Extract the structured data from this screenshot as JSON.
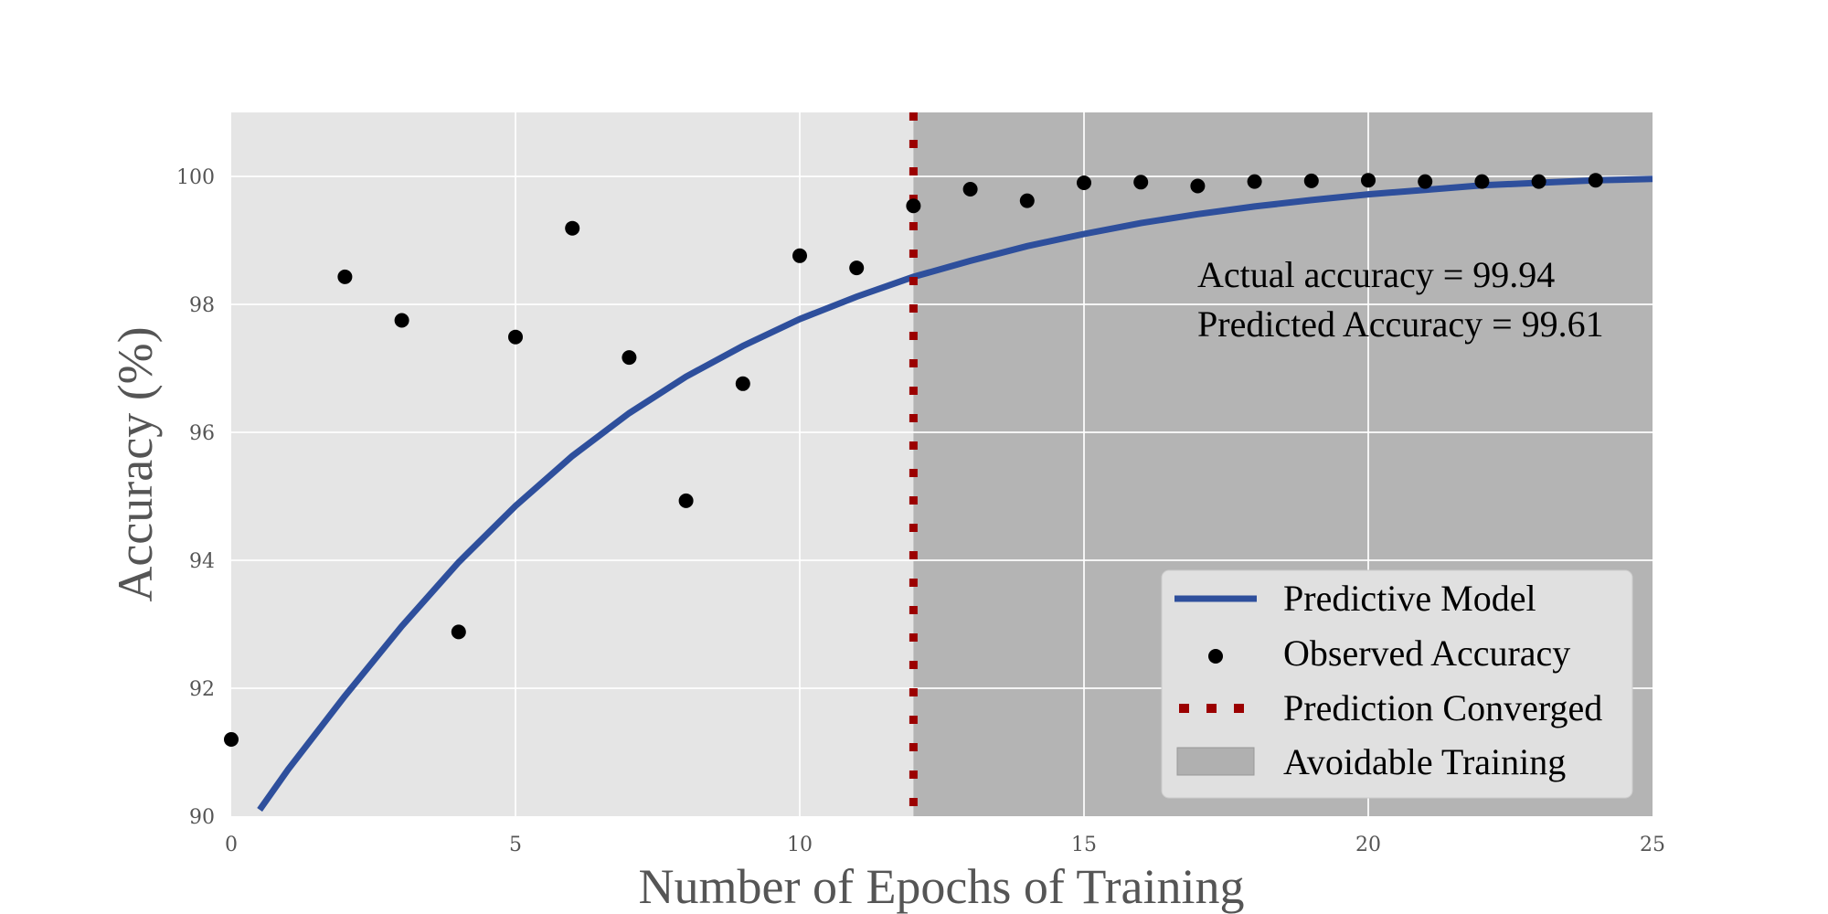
{
  "chart_data": {
    "type": "scatter",
    "xlabel": "Number of Epochs of Training",
    "ylabel": "Accuracy (%)",
    "xlim": [
      0,
      25
    ],
    "ylim": [
      90,
      101
    ],
    "xticks": [
      0,
      5,
      10,
      15,
      20,
      25
    ],
    "yticks": [
      90,
      92,
      94,
      96,
      98,
      100
    ],
    "grid": true,
    "legend_position": "lower-right",
    "colors": {
      "plot_background": "#e5e5e5",
      "shaded_region": "#b4b4b4",
      "model_line": "#2e4f9c",
      "observed_points": "#000000",
      "convergence_line": "#9b0000",
      "legend_background": "#e0e0e0"
    },
    "series": [
      {
        "name": "Observed Accuracy",
        "type": "scatter",
        "x": [
          0,
          2,
          3,
          4,
          5,
          6,
          7,
          8,
          9,
          10,
          11,
          12,
          13,
          14,
          15,
          16,
          17,
          18,
          19,
          20,
          21,
          22,
          23,
          24
        ],
        "y": [
          91.2,
          98.43,
          97.75,
          92.88,
          97.49,
          99.19,
          97.17,
          94.93,
          96.76,
          98.76,
          98.57,
          99.54,
          99.8,
          99.62,
          99.9,
          99.91,
          99.85,
          99.92,
          99.93,
          99.94,
          99.92,
          99.92,
          99.92,
          99.94
        ]
      },
      {
        "name": "Predictive Model",
        "type": "line",
        "x": [
          0.5,
          1,
          2,
          3,
          4,
          5,
          6,
          7,
          8,
          9,
          10,
          11,
          12,
          13,
          14,
          15,
          16,
          17,
          18,
          19,
          20,
          21,
          22,
          23,
          24,
          25
        ],
        "y": [
          90.1,
          90.73,
          91.88,
          92.97,
          93.97,
          94.85,
          95.63,
          96.3,
          96.87,
          97.35,
          97.77,
          98.12,
          98.43,
          98.68,
          98.91,
          99.1,
          99.27,
          99.41,
          99.53,
          99.63,
          99.72,
          99.79,
          99.86,
          99.9,
          99.94,
          99.96
        ]
      },
      {
        "name": "Prediction Converged",
        "type": "vline",
        "x": 12
      },
      {
        "name": "Avoidable Training",
        "type": "shaded-region",
        "x_range": [
          12,
          25
        ]
      }
    ],
    "legend": [
      "Predictive Model",
      "Observed Accuracy",
      "Prediction Converged",
      "Avoidable Training"
    ],
    "annotations": [
      "Actual accuracy = 99.94",
      "Predicted Accuracy = 99.61"
    ]
  }
}
